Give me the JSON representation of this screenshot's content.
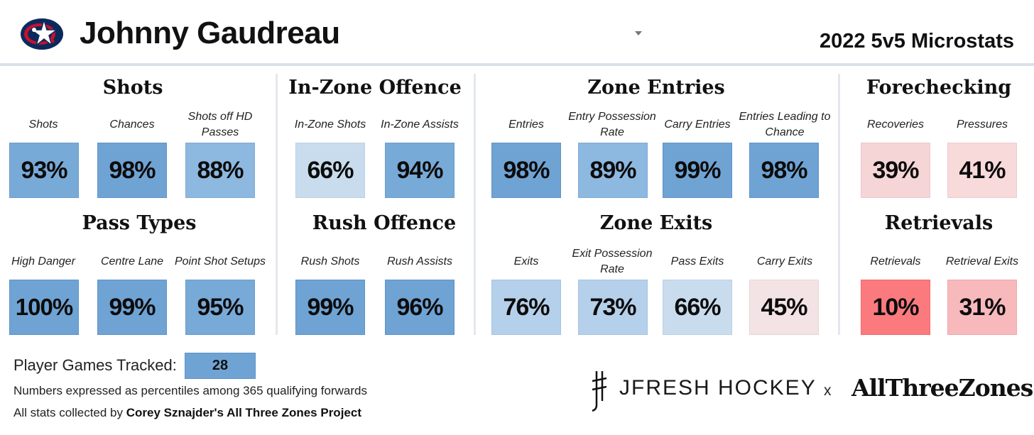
{
  "header": {
    "player_name": "Johnny Gaudreau",
    "season_title": "2022 5v5 Microstats",
    "team_logo": "blue-jackets-logo"
  },
  "sections": {
    "shots": {
      "title": "Shots",
      "stats": [
        {
          "label": "Shots",
          "value": "93%"
        },
        {
          "label": "Chances",
          "value": "98%"
        },
        {
          "label": "Shots off HD Passes",
          "value": "88%"
        }
      ]
    },
    "pass_types": {
      "title": "Pass Types",
      "stats": [
        {
          "label": "High Danger",
          "value": "100%"
        },
        {
          "label": "Centre Lane",
          "value": "99%"
        },
        {
          "label": "Point Shot Setups",
          "value": "95%"
        }
      ]
    },
    "inzone": {
      "title": "In-Zone Offence",
      "stats": [
        {
          "label": "In-Zone Shots",
          "value": "66%"
        },
        {
          "label": "In-Zone Assists",
          "value": "94%"
        }
      ]
    },
    "rush": {
      "title": "Rush Offence",
      "stats": [
        {
          "label": "Rush Shots",
          "value": "99%"
        },
        {
          "label": "Rush Assists",
          "value": "96%"
        }
      ]
    },
    "entries": {
      "title": "Zone Entries",
      "stats": [
        {
          "label": "Entries",
          "value": "98%"
        },
        {
          "label": "Entry Possession Rate",
          "value": "89%"
        },
        {
          "label": "Carry Entries",
          "value": "99%"
        },
        {
          "label": "Entries Leading to Chance",
          "value": "98%"
        }
      ]
    },
    "exits": {
      "title": "Zone Exits",
      "stats": [
        {
          "label": "Exits",
          "value": "76%"
        },
        {
          "label": "Exit Possession Rate",
          "value": "73%"
        },
        {
          "label": "Pass Exits",
          "value": "66%"
        },
        {
          "label": "Carry Exits",
          "value": "45%"
        }
      ]
    },
    "forechecking": {
      "title": "Forechecking",
      "stats": [
        {
          "label": "Recoveries",
          "value": "39%"
        },
        {
          "label": "Pressures",
          "value": "41%"
        }
      ]
    },
    "retrievals": {
      "title": "Retrievals",
      "stats": [
        {
          "label": "Retrievals",
          "value": "10%"
        },
        {
          "label": "Retrieval Exits",
          "value": "31%"
        }
      ]
    }
  },
  "footer": {
    "games_label": "Player Games Tracked:",
    "games_value": "28",
    "note_percentiles": "Numbers expressed as percentiles among 365 qualifying forwards",
    "note_source_prefix": "All stats collected by ",
    "note_source_bold": "Corey Sznajder's All Three Zones Project",
    "brand_jfresh": "JFRESH HOCKEY",
    "brand_x": "x",
    "brand_atz": "AllThreeZones"
  }
}
